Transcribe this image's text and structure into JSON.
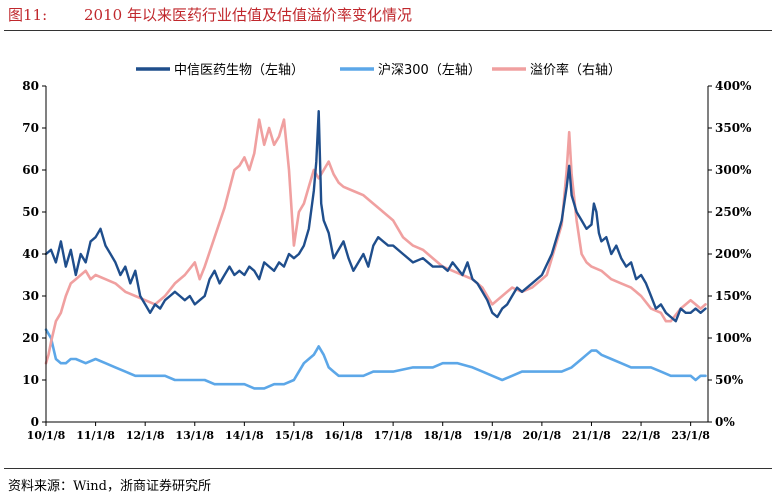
{
  "figure": {
    "number": "图11:",
    "title": "2010 年以来医药行业估值及估值溢价率变化情况",
    "source": "资料来源：Wind，浙商证券研究所"
  },
  "chart_data": {
    "type": "line",
    "title": "2010 年以来医药行业估值及估值溢价率变化情况",
    "x_tick_labels": [
      "10/1/8",
      "11/1/8",
      "12/1/8",
      "13/1/8",
      "14/1/8",
      "15/1/8",
      "16/1/8",
      "17/1/8",
      "18/1/8",
      "19/1/8",
      "20/1/8",
      "21/1/8",
      "22/1/8",
      "23/1/8"
    ],
    "x_range": [
      2010.0,
      2023.35
    ],
    "left_axis": {
      "range": [
        0,
        80
      ],
      "ticks": [
        "0",
        "10",
        "20",
        "30",
        "40",
        "50",
        "60",
        "70",
        "80"
      ]
    },
    "right_axis": {
      "range": [
        0,
        400
      ],
      "ticks": [
        "0%",
        "50%",
        "100%",
        "150%",
        "200%",
        "250%",
        "300%",
        "350%",
        "400%"
      ]
    },
    "legend_position": "top",
    "series": [
      {
        "name": "中信医药生物（左轴）",
        "axis": "left",
        "color": "#1f4e8c",
        "x": [
          2010.0,
          2010.1,
          2010.2,
          2010.3,
          2010.4,
          2010.5,
          2010.6,
          2010.7,
          2010.8,
          2010.9,
          2011.0,
          2011.1,
          2011.2,
          2011.3,
          2011.4,
          2011.5,
          2011.6,
          2011.7,
          2011.8,
          2011.9,
          2012.0,
          2012.1,
          2012.2,
          2012.3,
          2012.4,
          2012.5,
          2012.6,
          2012.7,
          2012.8,
          2012.9,
          2013.0,
          2013.1,
          2013.2,
          2013.3,
          2013.4,
          2013.5,
          2013.6,
          2013.7,
          2013.8,
          2013.9,
          2014.0,
          2014.1,
          2014.2,
          2014.3,
          2014.4,
          2014.5,
          2014.6,
          2014.7,
          2014.8,
          2014.9,
          2015.0,
          2015.1,
          2015.2,
          2015.3,
          2015.4,
          2015.45,
          2015.5,
          2015.55,
          2015.6,
          2015.7,
          2015.8,
          2015.9,
          2016.0,
          2016.1,
          2016.2,
          2016.3,
          2016.4,
          2016.5,
          2016.6,
          2016.7,
          2016.8,
          2016.9,
          2017.0,
          2017.2,
          2017.4,
          2017.6,
          2017.8,
          2018.0,
          2018.1,
          2018.2,
          2018.4,
          2018.5,
          2018.6,
          2018.7,
          2018.8,
          2018.9,
          2019.0,
          2019.1,
          2019.2,
          2019.3,
          2019.4,
          2019.5,
          2019.6,
          2019.8,
          2020.0,
          2020.2,
          2020.3,
          2020.4,
          2020.5,
          2020.55,
          2020.6,
          2020.7,
          2020.8,
          2020.9,
          2021.0,
          2021.05,
          2021.1,
          2021.15,
          2021.2,
          2021.3,
          2021.4,
          2021.5,
          2021.6,
          2021.7,
          2021.8,
          2021.9,
          2022.0,
          2022.1,
          2022.2,
          2022.3,
          2022.4,
          2022.5,
          2022.6,
          2022.7,
          2022.8,
          2022.9,
          2023.0,
          2023.1,
          2023.2,
          2023.3
        ],
        "y": [
          40,
          41,
          38,
          43,
          37,
          41,
          35,
          40,
          38,
          43,
          44,
          46,
          42,
          40,
          38,
          35,
          37,
          33,
          36,
          30,
          28,
          26,
          28,
          27,
          29,
          30,
          31,
          30,
          29,
          30,
          28,
          29,
          30,
          34,
          36,
          33,
          35,
          37,
          35,
          36,
          35,
          37,
          36,
          34,
          38,
          37,
          36,
          38,
          37,
          40,
          39,
          40,
          42,
          46,
          55,
          62,
          74,
          52,
          48,
          45,
          39,
          41,
          43,
          39,
          36,
          38,
          40,
          37,
          42,
          44,
          43,
          42,
          42,
          40,
          38,
          39,
          37,
          37,
          36,
          38,
          35,
          38,
          34,
          33,
          31,
          29,
          26,
          25,
          27,
          28,
          30,
          32,
          31,
          33,
          35,
          40,
          44,
          48,
          56,
          61,
          54,
          50,
          48,
          46,
          47,
          52,
          50,
          45,
          43,
          44,
          40,
          42,
          39,
          37,
          38,
          34,
          35,
          33,
          30,
          27,
          28,
          26,
          25,
          24,
          27,
          26,
          26,
          27,
          26,
          27
        ]
      },
      {
        "name": "沪深300（左轴）",
        "axis": "left",
        "color": "#5ca7e8",
        "x": [
          2010.0,
          2010.05,
          2010.1,
          2010.2,
          2010.3,
          2010.4,
          2010.5,
          2010.6,
          2010.8,
          2011.0,
          2011.2,
          2011.4,
          2011.6,
          2011.8,
          2012.0,
          2012.2,
          2012.4,
          2012.6,
          2012.8,
          2013.0,
          2013.2,
          2013.4,
          2013.6,
          2013.8,
          2014.0,
          2014.2,
          2014.4,
          2014.6,
          2014.8,
          2015.0,
          2015.1,
          2015.2,
          2015.3,
          2015.4,
          2015.45,
          2015.5,
          2015.6,
          2015.7,
          2015.8,
          2015.9,
          2016.0,
          2016.2,
          2016.4,
          2016.6,
          2016.8,
          2017.0,
          2017.4,
          2017.8,
          2018.0,
          2018.1,
          2018.3,
          2018.6,
          2018.8,
          2019.0,
          2019.2,
          2019.4,
          2019.6,
          2019.8,
          2020.0,
          2020.2,
          2020.4,
          2020.6,
          2020.8,
          2020.9,
          2021.0,
          2021.1,
          2021.2,
          2021.4,
          2021.6,
          2021.8,
          2022.0,
          2022.2,
          2022.4,
          2022.6,
          2022.8,
          2023.0,
          2023.1,
          2023.2,
          2023.3
        ],
        "y": [
          22,
          21,
          20,
          15,
          14,
          14,
          15,
          15,
          14,
          15,
          14,
          13,
          12,
          11,
          11,
          11,
          11,
          10,
          10,
          10,
          10,
          9,
          9,
          9,
          9,
          8,
          8,
          9,
          9,
          10,
          12,
          14,
          15,
          16,
          17,
          18,
          16,
          13,
          12,
          11,
          11,
          11,
          11,
          12,
          12,
          12,
          13,
          13,
          14,
          14,
          14,
          13,
          12,
          11,
          10,
          11,
          12,
          12,
          12,
          12,
          12,
          13,
          15,
          16,
          17,
          17,
          16,
          15,
          14,
          13,
          13,
          13,
          12,
          11,
          11,
          11,
          10,
          11,
          11
        ]
      },
      {
        "name": "溢价率（右轴）",
        "axis": "right",
        "color": "#f0a0a0",
        "x": [
          2010.0,
          2010.05,
          2010.1,
          2010.2,
          2010.3,
          2010.4,
          2010.5,
          2010.6,
          2010.7,
          2010.8,
          2010.9,
          2011.0,
          2011.2,
          2011.4,
          2011.6,
          2011.8,
          2012.0,
          2012.2,
          2012.4,
          2012.6,
          2012.8,
          2013.0,
          2013.1,
          2013.2,
          2013.4,
          2013.6,
          2013.8,
          2013.9,
          2014.0,
          2014.1,
          2014.2,
          2014.3,
          2014.4,
          2014.5,
          2014.6,
          2014.7,
          2014.8,
          2014.9,
          2015.0,
          2015.1,
          2015.2,
          2015.3,
          2015.4,
          2015.5,
          2015.6,
          2015.7,
          2015.8,
          2015.9,
          2016.0,
          2016.2,
          2016.4,
          2016.6,
          2016.8,
          2017.0,
          2017.2,
          2017.4,
          2017.6,
          2017.8,
          2018.0,
          2018.2,
          2018.4,
          2018.6,
          2018.8,
          2018.9,
          2019.0,
          2019.2,
          2019.4,
          2019.6,
          2019.8,
          2020.0,
          2020.1,
          2020.2,
          2020.3,
          2020.4,
          2020.5,
          2020.55,
          2020.6,
          2020.7,
          2020.8,
          2020.9,
          2021.0,
          2021.2,
          2021.4,
          2021.6,
          2021.8,
          2022.0,
          2022.2,
          2022.4,
          2022.5,
          2022.6,
          2022.8,
          2023.0,
          2023.1,
          2023.2,
          2023.3
        ],
        "y": [
          70,
          80,
          95,
          120,
          130,
          150,
          165,
          170,
          175,
          180,
          170,
          175,
          170,
          165,
          155,
          150,
          145,
          140,
          150,
          165,
          175,
          190,
          170,
          185,
          220,
          255,
          300,
          305,
          315,
          300,
          320,
          360,
          330,
          350,
          330,
          340,
          360,
          300,
          210,
          250,
          260,
          280,
          300,
          290,
          300,
          310,
          295,
          285,
          280,
          275,
          270,
          260,
          250,
          240,
          220,
          210,
          205,
          195,
          185,
          180,
          175,
          170,
          160,
          150,
          140,
          150,
          160,
          155,
          160,
          170,
          175,
          195,
          215,
          235,
          300,
          345,
          295,
          240,
          200,
          190,
          185,
          180,
          170,
          165,
          160,
          150,
          135,
          130,
          120,
          120,
          135,
          145,
          140,
          135,
          140
        ]
      }
    ]
  }
}
